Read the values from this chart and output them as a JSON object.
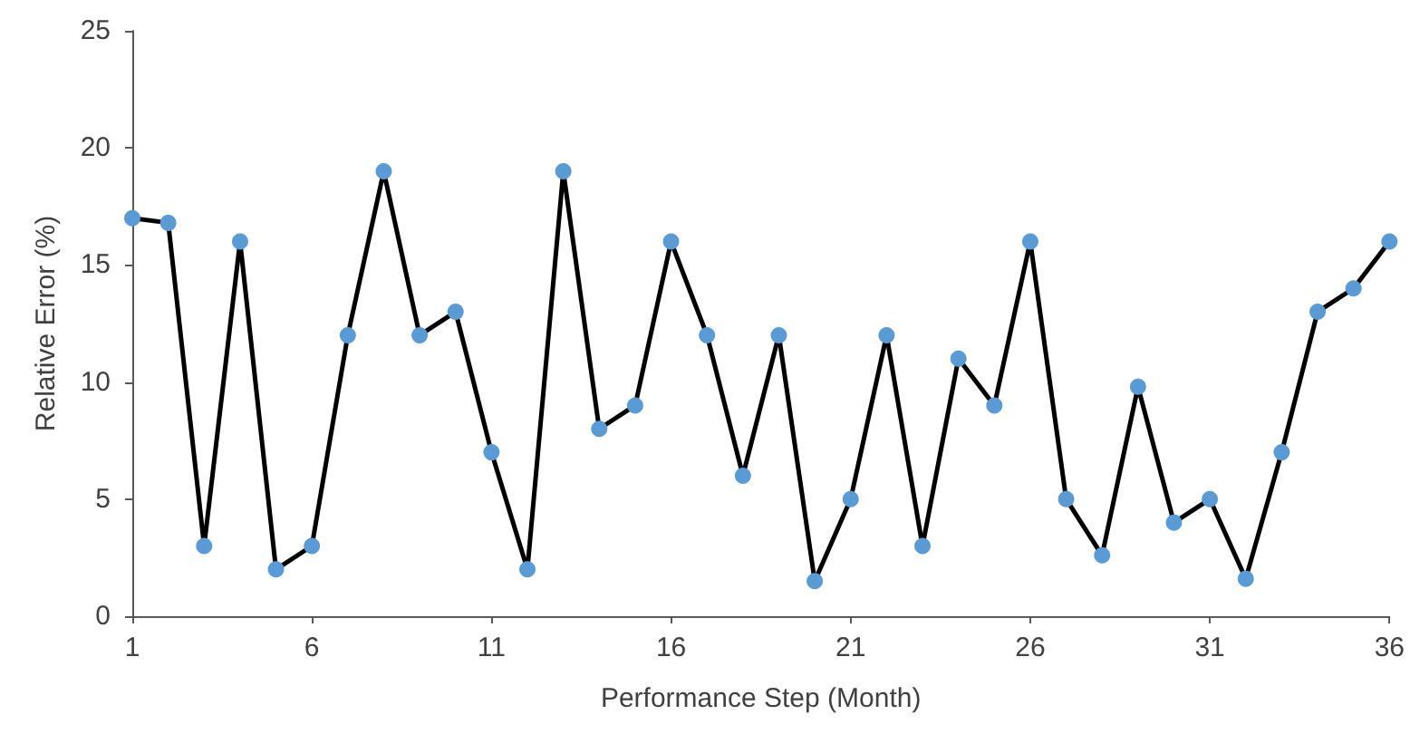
{
  "chart_data": {
    "type": "line",
    "xlabel": "Performance Step (Month)",
    "ylabel": "Relative Error (%)",
    "x": [
      1,
      2,
      3,
      4,
      5,
      6,
      7,
      8,
      9,
      10,
      11,
      12,
      13,
      14,
      15,
      16,
      17,
      18,
      19,
      20,
      21,
      22,
      23,
      24,
      25,
      26,
      27,
      28,
      29,
      30,
      31,
      32,
      33,
      34,
      35,
      36
    ],
    "series": [
      {
        "color": "#000000",
        "colors": [
          "#5b9bd5",
          "#5b9bd5",
          "#5b9bd5",
          "#5b9bd5",
          "#5b9bd5",
          "#5b9bd5",
          "#5b9bd5",
          "#5b9bd5",
          "#5b9bd5",
          "#5b9bd5",
          "#5b9bd5",
          "#5b9bd5",
          "#5b9bd5",
          "#5b9bd5",
          "#5b9bd5",
          "#5b9bd5",
          "#5b9bd5",
          "#5b9bd5",
          "#5b9bd5",
          "#5b9bd5",
          "#5b9bd5",
          "#5b9bd5",
          "#5b9bd5",
          "#5b9bd5",
          "#5b9bd5",
          "#5b9bd5",
          "#5b9bd5",
          "#5b9bd5",
          "#5b9bd5",
          "#5b9bd5",
          "#5b9bd5",
          "#5b9bd5",
          "#5b9bd5",
          "#5b9bd5",
          "#5b9bd5",
          "#5b9bd5"
        ],
        "values": [
          17,
          16.8,
          3,
          16,
          2,
          3,
          12,
          19,
          12,
          13,
          7,
          2,
          19,
          8,
          9,
          16,
          12,
          6,
          12,
          1.5,
          5,
          12,
          3,
          11,
          9,
          16,
          5,
          2.6,
          9.8,
          4,
          5,
          1.6,
          7,
          13,
          14,
          16
        ]
      }
    ],
    "xlim": [
      1,
      36
    ],
    "xticks": [
      1,
      6,
      11,
      16,
      21,
      26,
      31,
      36
    ],
    "ylim": [
      0,
      25
    ],
    "yticks": [
      0,
      5,
      10,
      15,
      20,
      25
    ],
    "grid": false,
    "marker": "circle",
    "line_style": "solid"
  }
}
